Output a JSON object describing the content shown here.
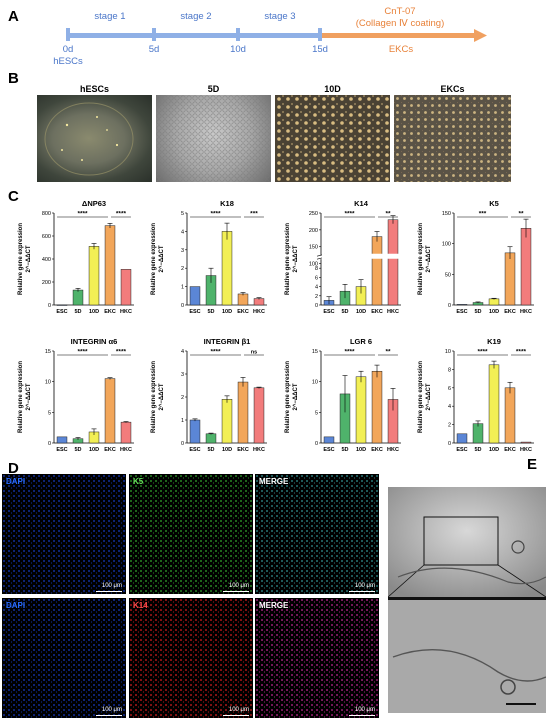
{
  "panels": {
    "a": "A",
    "b": "B",
    "c": "C",
    "d": "D",
    "e": "E"
  },
  "timeline": {
    "stages": [
      "stage 1",
      "stage 2",
      "stage 3"
    ],
    "days": [
      "0d",
      "5d",
      "10d",
      "15d"
    ],
    "start_label": "hESCs",
    "cnt_title": "CnT-07",
    "cnt_subtitle": "(Collagen Ⅳ coating)",
    "end_label": "EKCs",
    "colors": {
      "blue": "#8fb0e6",
      "orange": "#f0a060"
    }
  },
  "micrographs": [
    "hESCs",
    "5D",
    "10D",
    "EKCs"
  ],
  "bar_colors": {
    "ESC": "#5b86d6",
    "5D": "#4fb36b",
    "10D": "#f2ef55",
    "EKC": "#f2a65a",
    "HKC": "#f27c7c"
  },
  "chart_data": [
    {
      "type": "bar",
      "title": "ΔNP63",
      "ylabel": "Relative gene expression",
      "ylabel2": "2^−ΔΔCT",
      "categories": [
        "ESC",
        "5D",
        "10D",
        "EKC",
        "HKC"
      ],
      "values": [
        1,
        130,
        510,
        690,
        310
      ],
      "errors": [
        0,
        15,
        25,
        20,
        0
      ],
      "ylim": [
        0,
        800
      ],
      "yticks": [
        "0",
        "200",
        "400",
        "600",
        "800"
      ],
      "sig": [
        {
          "from": 0,
          "to": 3,
          "label": "****"
        },
        {
          "from": 3,
          "to": 4,
          "label": "****"
        }
      ]
    },
    {
      "type": "bar",
      "title": "K18",
      "ylabel": "Relative gene expression",
      "ylabel2": "2^−ΔΔCT",
      "categories": [
        "ESC",
        "5D",
        "10D",
        "EKC",
        "HKC"
      ],
      "values": [
        1,
        1.6,
        4.0,
        0.6,
        0.35
      ],
      "errors": [
        0,
        0.4,
        0.45,
        0.08,
        0.05
      ],
      "ylim": [
        0,
        5
      ],
      "yticks": [
        "0",
        "1",
        "2",
        "3",
        "4",
        "5"
      ],
      "sig": [
        {
          "from": 0,
          "to": 3,
          "label": "****"
        },
        {
          "from": 3,
          "to": 4,
          "label": "***"
        }
      ]
    },
    {
      "type": "bar",
      "title": "K14",
      "ylabel": "Relative gene expression",
      "ylabel2": "2^−ΔΔCT",
      "categories": [
        "ESC",
        "5D",
        "10D",
        "EKC",
        "HKC"
      ],
      "values": [
        1,
        3,
        4,
        180,
        230
      ],
      "errors": [
        0.8,
        1.5,
        1.5,
        15,
        12
      ],
      "ylim": [
        0,
        250
      ],
      "yticks": [
        "0",
        "2",
        "4",
        "6",
        "8",
        "100",
        "150",
        "200",
        "250"
      ],
      "sig": [
        {
          "from": 0,
          "to": 3,
          "label": "****"
        },
        {
          "from": 3,
          "to": 4,
          "label": "**"
        }
      ]
    },
    {
      "type": "bar",
      "title": "K5",
      "ylabel": "Relative gene expression",
      "ylabel2": "2^−ΔΔCT",
      "categories": [
        "ESC",
        "5D",
        "10D",
        "EKC",
        "HKC"
      ],
      "values": [
        1,
        4,
        10,
        85,
        125
      ],
      "errors": [
        0,
        1,
        1,
        10,
        15
      ],
      "ylim": [
        0,
        150
      ],
      "yticks": [
        "0",
        "50",
        "100",
        "150"
      ],
      "sig": [
        {
          "from": 0,
          "to": 3,
          "label": "***"
        },
        {
          "from": 3,
          "to": 4,
          "label": "**"
        }
      ]
    },
    {
      "type": "bar",
      "title": "INTEGRIN α6",
      "ylabel": "Relative gene expression",
      "ylabel2": "2^−ΔΔCT",
      "categories": [
        "ESC",
        "5D",
        "10D",
        "EKC",
        "HKC"
      ],
      "values": [
        1,
        0.7,
        1.8,
        10.5,
        3.4
      ],
      "errors": [
        0,
        0.2,
        0.5,
        0.15,
        0.1
      ],
      "ylim": [
        0,
        15
      ],
      "yticks": [
        "0",
        "5",
        "10",
        "15"
      ],
      "sig": [
        {
          "from": 0,
          "to": 3,
          "label": "****"
        },
        {
          "from": 3,
          "to": 4,
          "label": "****"
        }
      ]
    },
    {
      "type": "bar",
      "title": "INTEGRIN β1",
      "ylabel": "Relative gene expression",
      "ylabel2": "2^−ΔΔCT",
      "categories": [
        "ESC",
        "5D",
        "10D",
        "EKC",
        "HKC"
      ],
      "values": [
        1,
        0.4,
        1.9,
        2.65,
        2.4
      ],
      "errors": [
        0.05,
        0.03,
        0.15,
        0.2,
        0.03
      ],
      "ylim": [
        0,
        4
      ],
      "yticks": [
        "0",
        "1",
        "2",
        "3",
        "4"
      ],
      "sig": [
        {
          "from": 0,
          "to": 3,
          "label": "****"
        },
        {
          "from": 3,
          "to": 4,
          "label": "ns"
        }
      ]
    },
    {
      "type": "bar",
      "title": "LGR 6",
      "ylabel": "Relative gene expression",
      "ylabel2": "2^−ΔΔCT",
      "categories": [
        "ESC",
        "5D",
        "10D",
        "EKC",
        "HKC"
      ],
      "values": [
        1,
        8,
        10.8,
        11.7,
        7.1
      ],
      "errors": [
        0,
        3,
        0.9,
        1,
        1.8
      ],
      "ylim": [
        0,
        15
      ],
      "yticks": [
        "0",
        "5",
        "10",
        "15"
      ],
      "sig": [
        {
          "from": 0,
          "to": 3,
          "label": "****"
        },
        {
          "from": 3,
          "to": 4,
          "label": "**"
        }
      ]
    },
    {
      "type": "bar",
      "title": "K19",
      "ylabel": "Relative gene expression",
      "ylabel2": "2^−ΔΔCT",
      "categories": [
        "ESC",
        "5D",
        "10D",
        "EKC",
        "HKC"
      ],
      "values": [
        1,
        2.1,
        8.5,
        6,
        0.1
      ],
      "errors": [
        0,
        0.3,
        0.4,
        0.6,
        0
      ],
      "ylim": [
        0,
        10
      ],
      "yticks": [
        "0",
        "2",
        "4",
        "6",
        "8",
        "10"
      ],
      "sig": [
        {
          "from": 0,
          "to": 3,
          "label": "****"
        },
        {
          "from": 3,
          "to": 4,
          "label": "****"
        }
      ]
    }
  ],
  "fluorescence": [
    {
      "label": "DAPI",
      "scale": "100 μm",
      "color": "#2a6cff",
      "tint": "#1230a0"
    },
    {
      "label": "K5",
      "scale": "100 μm",
      "color": "#66e05a",
      "tint": "#2a8a25"
    },
    {
      "label": "MERGE",
      "scale": "100 μm",
      "color": "#ffffff",
      "tint": "#2a7a7a"
    },
    {
      "label": "DAPI",
      "scale": "100 μm",
      "color": "#2a6cff",
      "tint": "#1230a0"
    },
    {
      "label": "K14",
      "scale": "100 μm",
      "color": "#ff4a4a",
      "tint": "#b01818"
    },
    {
      "label": "MERGE",
      "scale": "100 μm",
      "color": "#ffffff",
      "tint": "#a0207a"
    }
  ]
}
